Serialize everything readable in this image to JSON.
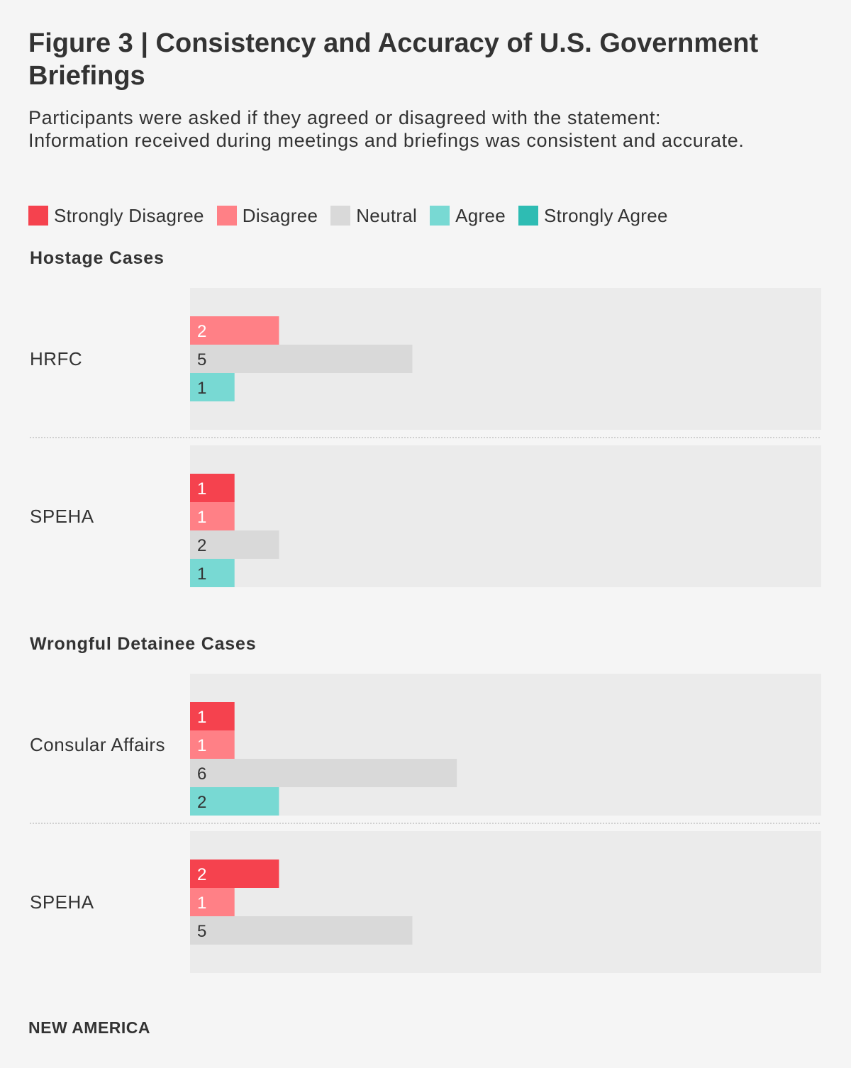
{
  "title": "Figure 3 | Consistency and Accuracy of U.S. Government Briefings",
  "subtitle": "Participants were asked if they agreed or disagreed with the statement: Information received during meetings and briefings was consistent and accurate.",
  "legend": [
    {
      "label": "Strongly Disagree",
      "color": "#f5424e"
    },
    {
      "label": "Disagree",
      "color": "#ff8086"
    },
    {
      "label": "Neutral",
      "color": "#d9d9d9"
    },
    {
      "label": "Agree",
      "color": "#78d9d3"
    },
    {
      "label": "Strongly Agree",
      "color": "#2ebcb3"
    }
  ],
  "chart_data": {
    "type": "bar",
    "orientation": "horizontal",
    "title": "Figure 3 | Consistency and Accuracy of U.S. Government Briefings",
    "categories": [
      "Strongly Disagree",
      "Disagree",
      "Neutral",
      "Agree",
      "Strongly Agree"
    ],
    "xlim": [
      0,
      14
    ],
    "groups": [
      {
        "name": "Hostage Cases",
        "rows": [
          {
            "name": "HRFC",
            "bars": [
              {
                "category": "Disagree",
                "value": 2
              },
              {
                "category": "Neutral",
                "value": 5
              },
              {
                "category": "Agree",
                "value": 1
              }
            ]
          },
          {
            "name": "SPEHA",
            "bars": [
              {
                "category": "Strongly Disagree",
                "value": 1
              },
              {
                "category": "Disagree",
                "value": 1
              },
              {
                "category": "Neutral",
                "value": 2
              },
              {
                "category": "Agree",
                "value": 1
              }
            ]
          }
        ]
      },
      {
        "name": "Wrongful Detainee Cases",
        "rows": [
          {
            "name": "Consular Affairs",
            "bars": [
              {
                "category": "Strongly Disagree",
                "value": 1
              },
              {
                "category": "Disagree",
                "value": 1
              },
              {
                "category": "Neutral",
                "value": 6
              },
              {
                "category": "Agree",
                "value": 2
              }
            ]
          },
          {
            "name": "SPEHA",
            "bars": [
              {
                "category": "Strongly Disagree",
                "value": 2
              },
              {
                "category": "Disagree",
                "value": 1
              },
              {
                "category": "Neutral",
                "value": 5
              }
            ]
          }
        ]
      }
    ]
  },
  "footer": "NEW AMERICA"
}
